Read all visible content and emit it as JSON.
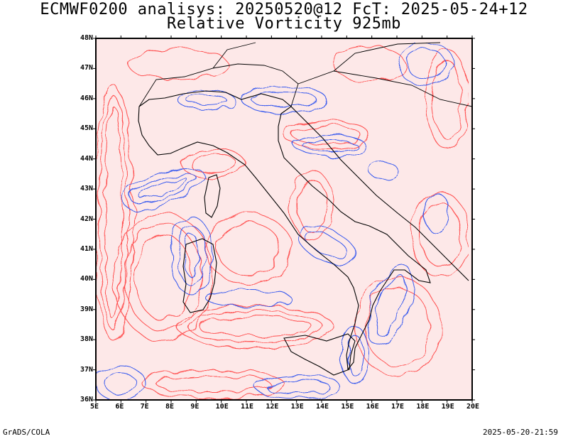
{
  "title": {
    "line1": "ECMWF0200 analisys: 20250520@12 FcT: 2025-05-24+12",
    "line2": "Relative Vorticity 925mb"
  },
  "axes": {
    "lat_labels": [
      "48N",
      "47N",
      "46N",
      "45N",
      "44N",
      "43N",
      "42N",
      "41N",
      "40N",
      "39N",
      "38N",
      "37N",
      "36N"
    ],
    "lon_labels": [
      "5E",
      "6E",
      "7E",
      "8E",
      "9E",
      "10E",
      "11E",
      "12E",
      "13E",
      "14E",
      "15E",
      "16E",
      "17E",
      "18E",
      "19E",
      "20E"
    ]
  },
  "map": {
    "lon_range": [
      5,
      20
    ],
    "lat_range": [
      36,
      48
    ],
    "positive_color": "#ff4d4d",
    "negative_color": "#3355ee",
    "coastline_color": "#000000"
  },
  "footer": {
    "left": "GrADS/COLA",
    "right": "2025-05-20-21:59"
  }
}
